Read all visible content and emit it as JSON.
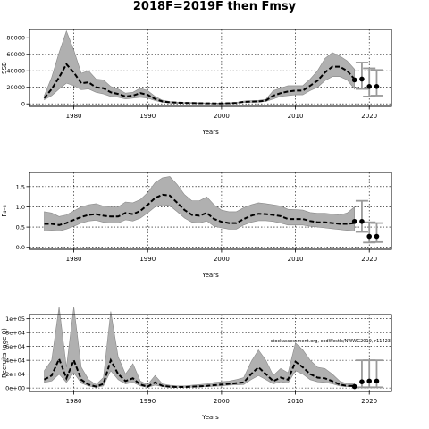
{
  "figure": {
    "title": "2018F=2019F then Fmsy"
  },
  "chart_data": [
    {
      "type": "line",
      "xlabel": "Years",
      "ylabel": "SSB",
      "xlim": [
        1974,
        2023
      ],
      "ylim": [
        -3000,
        90000
      ],
      "x_ticks": [
        1980,
        1990,
        2000,
        2010,
        2020
      ],
      "y_ticks": [
        0,
        20000,
        40000,
        60000,
        80000
      ],
      "y_tick_labels": [
        "0",
        "20000",
        "40000",
        "60000",
        "80000"
      ],
      "grid": true,
      "series": [
        {
          "x": [
            1976,
            1977,
            1978,
            1979,
            1980,
            1981,
            1982,
            1983,
            1984,
            1985,
            1986,
            1987,
            1988,
            1989,
            1990,
            1991,
            1992,
            1993,
            1994,
            1995,
            1996,
            1997,
            1998,
            1999,
            2000,
            2001,
            2002,
            2003,
            2004,
            2005,
            2006,
            2007,
            2008,
            2009,
            2010,
            2011,
            2012,
            2013,
            2014,
            2015,
            2016,
            2017,
            2018
          ],
          "y": [
            7000,
            18000,
            32000,
            48000,
            38000,
            25000,
            26000,
            20000,
            19000,
            14000,
            12000,
            9000,
            10000,
            13000,
            11000,
            6000,
            3000,
            2000,
            1500,
            1200,
            1000,
            800,
            700,
            600,
            600,
            800,
            1200,
            2500,
            2800,
            3000,
            4000,
            10000,
            13000,
            15000,
            16000,
            16000,
            22000,
            28000,
            38000,
            45000,
            45000,
            40000,
            30000
          ],
          "lower": [
            5000,
            10000,
            18000,
            25000,
            22000,
            17000,
            18000,
            14000,
            12000,
            9000,
            8000,
            6000,
            7000,
            8000,
            7000,
            4000,
            2000,
            1200,
            900,
            700,
            600,
            500,
            400,
            300,
            300,
            500,
            800,
            1800,
            2000,
            2200,
            3000,
            6000,
            9000,
            10000,
            11000,
            11000,
            16000,
            20000,
            28000,
            33000,
            33000,
            29000,
            18000
          ],
          "upper": [
            10000,
            32000,
            62000,
            88000,
            65000,
            37000,
            40000,
            30000,
            29000,
            21000,
            18000,
            13000,
            14000,
            19000,
            16000,
            9000,
            4500,
            3000,
            2200,
            1800,
            1600,
            1300,
            1100,
            1000,
            1000,
            1300,
            1900,
            3500,
            3800,
            4200,
            5500,
            16000,
            19000,
            22000,
            22000,
            22000,
            30000,
            40000,
            55000,
            62000,
            58000,
            52000,
            42000
          ]
        }
      ],
      "projection": {
        "x": [
          2018,
          2019,
          2020,
          2021
        ],
        "y": [
          29000,
          30000,
          21000,
          21000
        ]
      },
      "error_bars": [
        {
          "x": 2019,
          "low": 18000,
          "high": 50000
        },
        {
          "x": 2020,
          "low": 9000,
          "high": 43000
        },
        {
          "x": 2021,
          "low": 10000,
          "high": 41000
        }
      ]
    },
    {
      "type": "line",
      "xlabel": "Years",
      "ylabel": "F₄₋₈",
      "xlim": [
        1974,
        2023
      ],
      "ylim": [
        -0.05,
        1.85
      ],
      "x_ticks": [
        1980,
        1990,
        2000,
        2010,
        2020
      ],
      "y_ticks": [
        0.0,
        0.5,
        1.0,
        1.5
      ],
      "y_tick_labels": [
        "0.0",
        "0.5",
        "1.0",
        "1.5"
      ],
      "grid": true,
      "series": [
        {
          "x": [
            1976,
            1977,
            1978,
            1979,
            1980,
            1981,
            1982,
            1983,
            1984,
            1985,
            1986,
            1987,
            1988,
            1989,
            1990,
            1991,
            1992,
            1993,
            1994,
            1995,
            1996,
            1997,
            1998,
            1999,
            2000,
            2001,
            2002,
            2003,
            2004,
            2005,
            2006,
            2007,
            2008,
            2009,
            2010,
            2011,
            2012,
            2013,
            2014,
            2015,
            2016,
            2017,
            2018
          ],
          "y": [
            0.58,
            0.58,
            0.55,
            0.6,
            0.68,
            0.75,
            0.8,
            0.82,
            0.78,
            0.76,
            0.76,
            0.85,
            0.82,
            0.9,
            1.05,
            1.22,
            1.3,
            1.28,
            1.1,
            0.92,
            0.8,
            0.78,
            0.85,
            0.7,
            0.63,
            0.6,
            0.6,
            0.7,
            0.78,
            0.83,
            0.82,
            0.8,
            0.77,
            0.7,
            0.7,
            0.7,
            0.65,
            0.62,
            0.62,
            0.6,
            0.58,
            0.58,
            0.6
          ],
          "lower": [
            0.4,
            0.42,
            0.4,
            0.45,
            0.52,
            0.6,
            0.65,
            0.67,
            0.62,
            0.6,
            0.6,
            0.68,
            0.65,
            0.72,
            0.85,
            1.0,
            1.05,
            1.03,
            0.88,
            0.72,
            0.62,
            0.6,
            0.65,
            0.52,
            0.48,
            0.45,
            0.45,
            0.55,
            0.62,
            0.66,
            0.66,
            0.64,
            0.6,
            0.55,
            0.55,
            0.55,
            0.52,
            0.5,
            0.48,
            0.46,
            0.44,
            0.42,
            0.4
          ],
          "upper": [
            0.88,
            0.85,
            0.76,
            0.8,
            0.9,
            1.0,
            1.05,
            1.08,
            1.02,
            1.0,
            1.0,
            1.12,
            1.1,
            1.18,
            1.35,
            1.6,
            1.72,
            1.75,
            1.55,
            1.3,
            1.15,
            1.15,
            1.25,
            1.05,
            0.92,
            0.88,
            0.88,
            0.98,
            1.05,
            1.1,
            1.08,
            1.05,
            1.02,
            0.94,
            0.93,
            0.92,
            0.86,
            0.84,
            0.84,
            0.82,
            0.8,
            0.85,
            1.0
          ]
        }
      ],
      "projection": {
        "x": [
          2018,
          2019,
          2020,
          2021
        ],
        "y": [
          0.64,
          0.64,
          0.27,
          0.27
        ]
      },
      "error_bars": [
        {
          "x": 2019,
          "low": 0.38,
          "high": 1.15
        },
        {
          "x": 2020,
          "low": 0.12,
          "high": 0.62
        },
        {
          "x": 2021,
          "low": 0.13,
          "high": 0.6
        }
      ]
    },
    {
      "type": "line",
      "xlabel": "Years",
      "ylabel": "Recruits (age 0)",
      "xlim": [
        1974,
        2023
      ],
      "ylim": [
        -8000,
        170000
      ],
      "x_ticks": [
        1980,
        1990,
        2000,
        2010,
        2020
      ],
      "y_ticks": [
        0,
        1,
        2,
        3,
        4,
        5
      ],
      "y_tick_values": [
        0,
        20000,
        40000,
        60000,
        80000,
        100000
      ],
      "y_tick_labels": [
        "0e+00",
        "2e+04",
        "4e+04",
        "6e+04",
        "8e+04",
        "1e+05"
      ],
      "grid": true,
      "annotation": "stockassessment.org, codWestIs/NWWG2019, r11423",
      "series": [
        {
          "x": [
            1976,
            1977,
            1978,
            1979,
            1980,
            1981,
            1982,
            1983,
            1984,
            1985,
            1986,
            1987,
            1988,
            1989,
            1990,
            1991,
            1992,
            1993,
            1994,
            1995,
            1996,
            1997,
            1998,
            1999,
            2000,
            2001,
            2002,
            2003,
            2004,
            2005,
            2006,
            2007,
            2008,
            2009,
            2010,
            2011,
            2012,
            2013,
            2014,
            2015,
            2016,
            2017,
            2018
          ],
          "y": [
            12000,
            18000,
            42000,
            14000,
            40000,
            12000,
            5000,
            2000,
            6000,
            40000,
            20000,
            10000,
            14000,
            5000,
            2000,
            8000,
            3000,
            2000,
            1500,
            1500,
            2000,
            2500,
            3000,
            4000,
            5000,
            6000,
            7000,
            8000,
            20000,
            30000,
            20000,
            10000,
            15000,
            12000,
            38000,
            30000,
            20000,
            15000,
            14000,
            10000,
            5000,
            3000,
            3000
          ],
          "lower": [
            8000,
            10000,
            20000,
            8000,
            22000,
            7000,
            3000,
            1000,
            3000,
            25000,
            12000,
            6000,
            8000,
            3000,
            1000,
            4000,
            2000,
            1000,
            800,
            800,
            1200,
            1500,
            2000,
            2500,
            3000,
            4000,
            4500,
            5000,
            12000,
            18000,
            12000,
            6000,
            9000,
            7000,
            25000,
            20000,
            12000,
            9000,
            8000,
            6000,
            3000,
            1800,
            1800
          ],
          "upper": [
            25000,
            40000,
            150000,
            30000,
            150000,
            30000,
            12000,
            5000,
            15000,
            130000,
            45000,
            20000,
            35000,
            10000,
            5000,
            18000,
            6000,
            4000,
            3000,
            3000,
            4000,
            5000,
            6000,
            8000,
            9000,
            10000,
            12000,
            15000,
            38000,
            55000,
            40000,
            18000,
            28000,
            22000,
            65000,
            55000,
            40000,
            30000,
            28000,
            20000,
            10000,
            6000,
            7000
          ]
        }
      ],
      "projection": {
        "x": [
          2018,
          2019,
          2020,
          2021
        ],
        "y": [
          2000,
          9000,
          10000,
          10000
        ]
      },
      "error_bars": [
        {
          "x": 2019,
          "low": 1000,
          "high": 40000
        },
        {
          "x": 2020,
          "low": 1000,
          "high": 40000
        },
        {
          "x": 2021,
          "low": 1000,
          "high": 40000
        }
      ]
    }
  ]
}
